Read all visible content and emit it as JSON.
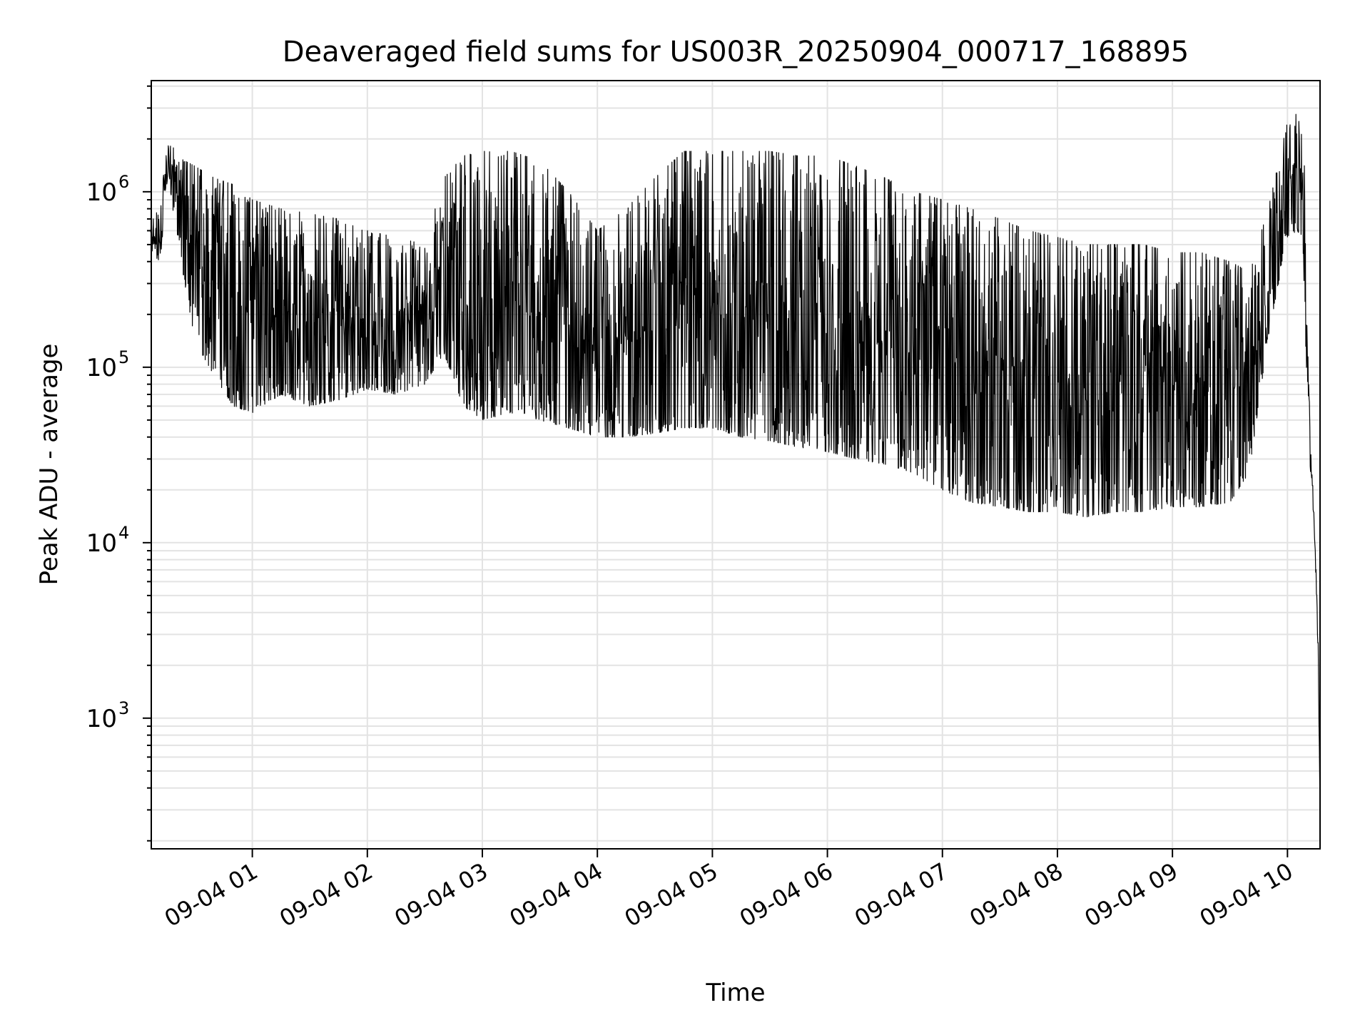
{
  "chart_data": {
    "type": "line",
    "title": "Deaveraged field sums for US003R_20250904_000717_168895",
    "xlabel": "Time",
    "ylabel": "Peak ADU - average",
    "yscale": "log",
    "ylim": [
      180,
      4300000
    ],
    "xlim": [
      "2025-09-04 00:07:17",
      "2025-09-04 10:17:00"
    ],
    "grid": true,
    "line_color": "#000000",
    "x_tick_labels": [
      "09-04 01",
      "09-04 02",
      "09-04 03",
      "09-04 04",
      "09-04 05",
      "09-04 06",
      "09-04 07",
      "09-04 08",
      "09-04 09",
      "09-04 10"
    ],
    "y_tick_labels": [
      {
        "base": "10",
        "exp": "3",
        "value": 1000
      },
      {
        "base": "10",
        "exp": "4",
        "value": 10000
      },
      {
        "base": "10",
        "exp": "5",
        "value": 100000
      },
      {
        "base": "10",
        "exp": "6",
        "value": 1000000
      }
    ],
    "series": [
      {
        "envelope": {
          "x": [
            "2025-09-04 00:07",
            "2025-09-04 00:12",
            "2025-09-04 00:16",
            "2025-09-04 00:20",
            "2025-09-04 00:30",
            "2025-09-04 00:40",
            "2025-09-04 00:50",
            "2025-09-04 01:00",
            "2025-09-04 01:15",
            "2025-09-04 01:30",
            "2025-09-04 01:45",
            "2025-09-04 02:00",
            "2025-09-04 02:15",
            "2025-09-04 02:30",
            "2025-09-04 02:40",
            "2025-09-04 02:50",
            "2025-09-04 03:00",
            "2025-09-04 03:15",
            "2025-09-04 03:30",
            "2025-09-04 03:45",
            "2025-09-04 04:00",
            "2025-09-04 04:15",
            "2025-09-04 04:30",
            "2025-09-04 04:45",
            "2025-09-04 05:00",
            "2025-09-04 05:15",
            "2025-09-04 05:30",
            "2025-09-04 05:45",
            "2025-09-04 06:00",
            "2025-09-04 06:15",
            "2025-09-04 06:30",
            "2025-09-04 06:45",
            "2025-09-04 07:00",
            "2025-09-04 07:15",
            "2025-09-04 07:30",
            "2025-09-04 07:45",
            "2025-09-04 08:00",
            "2025-09-04 08:15",
            "2025-09-04 08:30",
            "2025-09-04 08:45",
            "2025-09-04 09:00",
            "2025-09-04 09:15",
            "2025-09-04 09:30",
            "2025-09-04 09:40",
            "2025-09-04 09:50",
            "2025-09-04 10:00",
            "2025-09-04 10:05",
            "2025-09-04 10:08",
            "2025-09-04 10:10",
            "2025-09-04 10:12",
            "2025-09-04 10:14",
            "2025-09-04 10:16",
            "2025-09-04 10:17"
          ],
          "low": [
            450000,
            400000,
            1300000,
            600000,
            140000,
            90000,
            60000,
            55000,
            70000,
            60000,
            65000,
            75000,
            70000,
            80000,
            120000,
            60000,
            50000,
            55000,
            50000,
            45000,
            40000,
            40000,
            42000,
            45000,
            45000,
            40000,
            38000,
            35000,
            33000,
            30000,
            28000,
            25000,
            20000,
            17000,
            16000,
            15000,
            15000,
            14000,
            15000,
            15000,
            16000,
            16000,
            17000,
            25000,
            150000,
            550000,
            600000,
            550000,
            80000,
            25000,
            12000,
            2000,
            280
          ],
          "high": [
            700000,
            800000,
            2300000,
            1600000,
            1400000,
            1200000,
            1100000,
            900000,
            800000,
            750000,
            700000,
            600000,
            550000,
            500000,
            1200000,
            1600000,
            1700000,
            1700000,
            1500000,
            1000000,
            600000,
            800000,
            1200000,
            1700000,
            1700000,
            1700000,
            1700000,
            1600000,
            1600000,
            1400000,
            1200000,
            1000000,
            900000,
            800000,
            700000,
            600000,
            550000,
            500000,
            500000,
            500000,
            450000,
            450000,
            400000,
            350000,
            800000,
            2500000,
            2800000,
            2000000,
            1200000,
            35000,
            15000,
            3000,
            300
          ]
        }
      }
    ]
  }
}
